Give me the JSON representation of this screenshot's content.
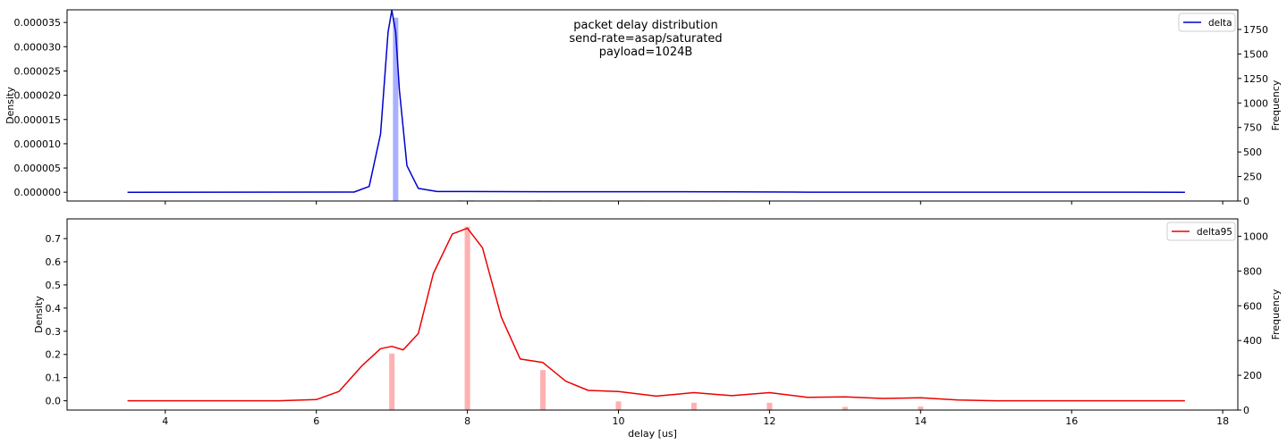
{
  "chart_data": [
    {
      "type": "line",
      "title_lines": [
        "packet delay distribution",
        "send-rate=asap/saturated",
        "payload=1024B"
      ],
      "ylabel": "Density",
      "y2label": "Frequency",
      "xlim": [
        2.7,
        18.2
      ],
      "ylim": [
        -1.8e-06,
        3.76e-05
      ],
      "y2lim": [
        0,
        1950
      ],
      "yticks": [
        0,
        5e-06,
        1e-05,
        1.5e-05,
        2e-05,
        2.5e-05,
        3e-05,
        3.5e-05
      ],
      "ytick_labels": [
        "0.000000",
        "0.000005",
        "0.000010",
        "0.000015",
        "0.000020",
        "0.000025",
        "0.000030",
        "0.000035"
      ],
      "y2ticks": [
        0,
        250,
        500,
        750,
        1000,
        1250,
        1500,
        1750
      ],
      "y2tick_labels": [
        "0",
        "250",
        "500",
        "750",
        "1000",
        "1250",
        "1500",
        "1750"
      ],
      "xticks": [
        4,
        6,
        8,
        10,
        12,
        14,
        16,
        18
      ],
      "show_xtick_labels": false,
      "legend": {
        "position": "upper-right",
        "entries": [
          {
            "name": "delta",
            "color": "#0000cc"
          }
        ]
      },
      "series": [
        {
          "name": "delta",
          "kind": "kde",
          "color": "#0000cc",
          "x": [
            3.5,
            6.5,
            6.7,
            6.85,
            6.95,
            7.0,
            7.05,
            7.1,
            7.2,
            7.35,
            7.6,
            8.0,
            9.0,
            10.3,
            11.5,
            12.5,
            17.5
          ],
          "y": [
            0,
            5e-08,
            1.2e-06,
            1.2e-05,
            3.3e-05,
            3.75e-05,
            3.3e-05,
            2.1e-05,
            5.5e-06,
            8e-07,
            1.5e-07,
            1.5e-07,
            1.2e-07,
            1.2e-07,
            1e-07,
            3e-08,
            0
          ]
        }
      ],
      "histogram": {
        "color": "#aab0ff",
        "bins": [
          {
            "x": 7.05,
            "count": 1870
          },
          {
            "x": 7.9,
            "count": 6
          },
          {
            "x": 8.05,
            "count": 6
          },
          {
            "x": 8.95,
            "count": 6
          },
          {
            "x": 9.1,
            "count": 5
          },
          {
            "x": 10.3,
            "count": 5
          },
          {
            "x": 11.25,
            "count": 5
          },
          {
            "x": 11.4,
            "count": 5
          }
        ]
      }
    },
    {
      "type": "line",
      "xlabel": "delay [us]",
      "ylabel": "Density",
      "y2label": "Frequency",
      "xlim": [
        2.7,
        18.2
      ],
      "ylim": [
        -0.04,
        0.785
      ],
      "y2lim": [
        0,
        1100
      ],
      "yticks": [
        0,
        0.1,
        0.2,
        0.3,
        0.4,
        0.5,
        0.6,
        0.7
      ],
      "ytick_labels": [
        "0.0",
        "0.1",
        "0.2",
        "0.3",
        "0.4",
        "0.5",
        "0.6",
        "0.7"
      ],
      "y2ticks": [
        0,
        200,
        400,
        600,
        800,
        1000
      ],
      "y2tick_labels": [
        "0",
        "200",
        "400",
        "600",
        "800",
        "1000"
      ],
      "xticks": [
        4,
        6,
        8,
        10,
        12,
        14,
        16,
        18
      ],
      "xtick_labels": [
        "4",
        "6",
        "8",
        "10",
        "12",
        "14",
        "16",
        "18"
      ],
      "show_xtick_labels": true,
      "legend": {
        "position": "upper-right",
        "entries": [
          {
            "name": "delta95",
            "color": "#ee0000"
          }
        ]
      },
      "series": [
        {
          "name": "delta95",
          "kind": "kde",
          "color": "#ee0000",
          "x": [
            3.5,
            5.5,
            6.0,
            6.3,
            6.6,
            6.85,
            7.0,
            7.15,
            7.35,
            7.55,
            7.8,
            8.0,
            8.2,
            8.45,
            8.7,
            9.0,
            9.3,
            9.6,
            10.0,
            10.5,
            11.0,
            11.5,
            12.0,
            12.5,
            13.0,
            13.5,
            14.0,
            14.5,
            15.0,
            17.5
          ],
          "y": [
            0,
            0,
            0.005,
            0.04,
            0.15,
            0.225,
            0.235,
            0.22,
            0.29,
            0.55,
            0.72,
            0.745,
            0.66,
            0.36,
            0.18,
            0.165,
            0.085,
            0.045,
            0.04,
            0.02,
            0.035,
            0.022,
            0.035,
            0.015,
            0.017,
            0.01,
            0.013,
            0.003,
            0,
            0
          ]
        }
      ],
      "histogram": {
        "color": "#ffb0b0",
        "bins": [
          {
            "x": 7.0,
            "count": 325
          },
          {
            "x": 8.0,
            "count": 1055
          },
          {
            "x": 9.0,
            "count": 230
          },
          {
            "x": 10.0,
            "count": 50
          },
          {
            "x": 11.0,
            "count": 42
          },
          {
            "x": 12.0,
            "count": 42
          },
          {
            "x": 13.0,
            "count": 18
          },
          {
            "x": 14.0,
            "count": 20
          }
        ]
      }
    }
  ]
}
